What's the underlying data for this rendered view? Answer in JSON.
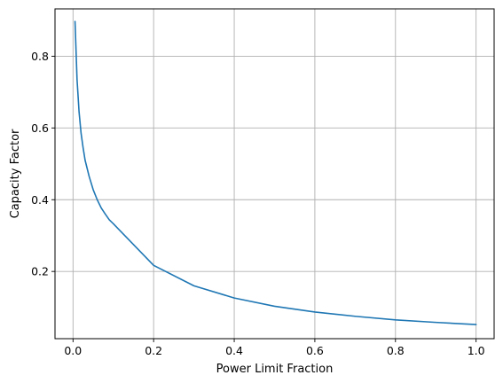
{
  "chart_data": {
    "type": "line",
    "title": "",
    "xlabel": "Power Limit Fraction",
    "ylabel": "Capacity Factor",
    "xlim": [
      -0.0447,
      1.0448
    ],
    "ylim": [
      0.0126,
      0.932
    ],
    "xticks": [
      0.0,
      0.2,
      0.4,
      0.6,
      0.8,
      1.0
    ],
    "xtick_labels": [
      "0.0",
      "0.2",
      "0.4",
      "0.6",
      "0.8",
      "1.0"
    ],
    "yticks": [
      0.2,
      0.4,
      0.6,
      0.8
    ],
    "ytick_labels": [
      "0.2",
      "0.4",
      "0.6",
      "0.8"
    ],
    "grid": true,
    "series": [
      {
        "color": "#1f77b4",
        "x": [
          0.005,
          0.01,
          0.015,
          0.02,
          0.025,
          0.03,
          0.04,
          0.05,
          0.06,
          0.07,
          0.08,
          0.09,
          0.1,
          0.2,
          0.3,
          0.4,
          0.5,
          0.6,
          0.7,
          0.8,
          0.9,
          1.0
        ],
        "y": [
          0.897,
          0.735,
          0.645,
          0.585,
          0.545,
          0.51,
          0.465,
          0.428,
          0.4,
          0.377,
          0.36,
          0.344,
          0.333,
          0.217,
          0.16,
          0.126,
          0.103,
          0.087,
          0.075,
          0.065,
          0.058,
          0.052
        ]
      }
    ]
  }
}
